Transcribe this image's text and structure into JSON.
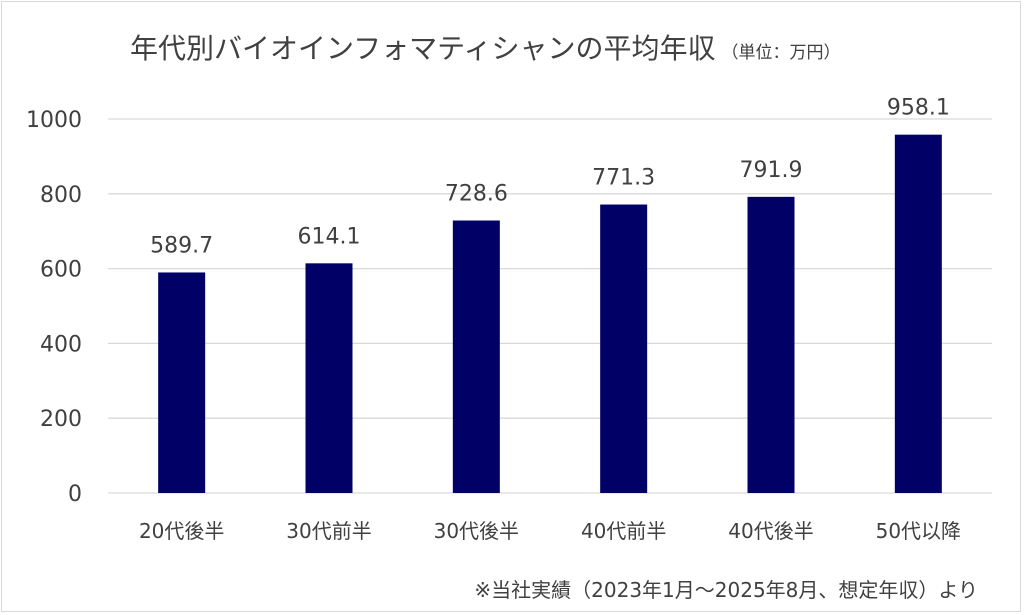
{
  "chart_data": {
    "type": "bar",
    "title": "年代別バイオインフォマティシャンの平均年収",
    "unit_note": "（単位：万円）",
    "xlabel": "",
    "ylabel": "",
    "categories": [
      "20代後半",
      "30代前半",
      "30代後半",
      "40代前半",
      "40代後半",
      "50代以降"
    ],
    "values": [
      589.7,
      614.1,
      728.6,
      771.3,
      791.9,
      958.1
    ],
    "data_labels": [
      "589.7",
      "614.1",
      "728.6",
      "771.3",
      "791.9",
      "958.1"
    ],
    "ylim": [
      0,
      1000
    ],
    "yticks": [
      0,
      200,
      400,
      600,
      800,
      1000
    ],
    "ytick_labels": [
      "0",
      "200",
      "400",
      "600",
      "800",
      "1000"
    ],
    "grid": true,
    "legend": "none",
    "bar_color": "#000066",
    "grid_color": "#d9d9d9",
    "footnote": "※当社実績（2023年1月～2025年8月、想定年収）より"
  }
}
